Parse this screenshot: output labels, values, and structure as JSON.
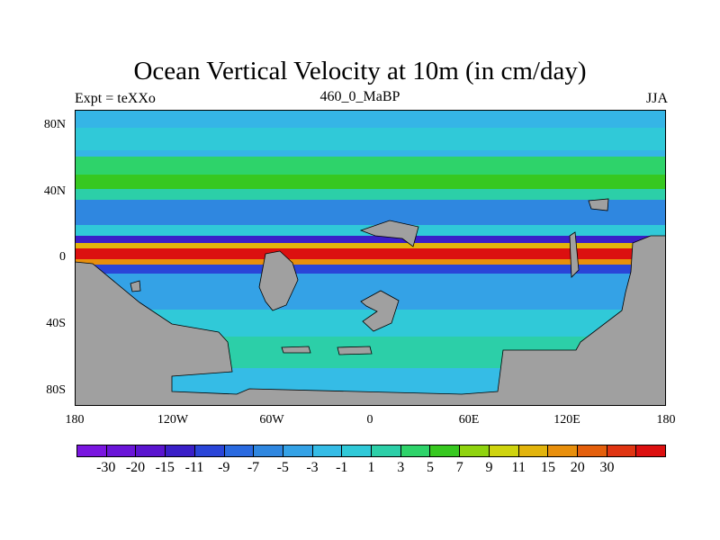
{
  "title": "Ocean Vertical Velocity at 10m (in cm/day)",
  "left_string": "Expt = teXXo",
  "center_string": "460_0_MaBP",
  "right_string": "JJA",
  "y_ticks": [
    "80N",
    "40N",
    "0",
    "40S",
    "80S"
  ],
  "x_ticks": [
    "180",
    "120W",
    "60W",
    "0",
    "60E",
    "120E",
    "180"
  ],
  "colorbar": {
    "labels": [
      "-30",
      "-20",
      "-15",
      "-11",
      "-9",
      "-7",
      "-5",
      "-3",
      "-1",
      "1",
      "3",
      "5",
      "7",
      "9",
      "11",
      "15",
      "20",
      "30"
    ],
    "colors": [
      "#7a16e0",
      "#6a15d8",
      "#5a14cf",
      "#3a1fc8",
      "#2a45d8",
      "#2a6ae0",
      "#2f87e0",
      "#34a2e6",
      "#35bce6",
      "#30c9d8",
      "#2ccfa8",
      "#2ed36a",
      "#37c820",
      "#8fd30e",
      "#cfd40e",
      "#e2b40c",
      "#e88f0c",
      "#e45f0c",
      "#e03512",
      "#dc1010"
    ]
  },
  "land_color": "#a0a0a0"
}
